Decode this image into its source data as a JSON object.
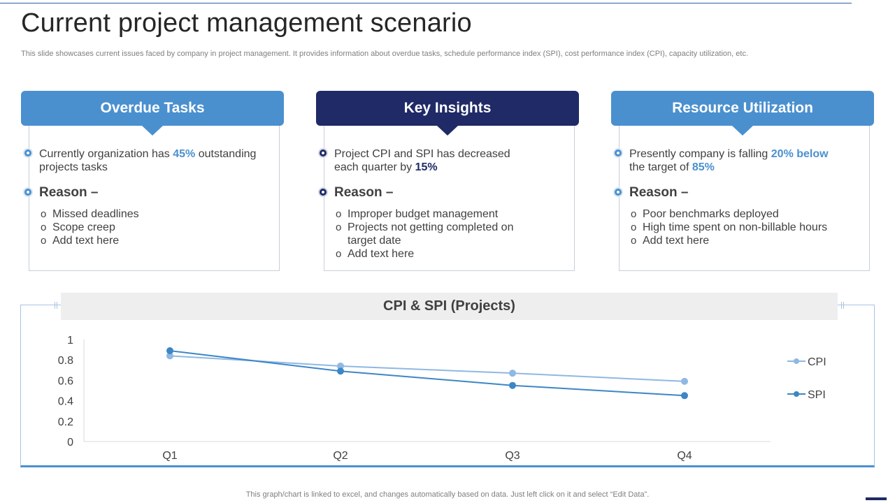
{
  "page": {
    "title": "Current project management scenario",
    "subtitle": "This slide showcases current issues faced by company in project management. It provides information about overdue tasks, schedule performance index (SPI), cost performance index (CPI), capacity utilization, etc."
  },
  "cards": [
    {
      "header": "Overdue Tasks",
      "statement_pre": "Currently  organization has ",
      "statement_hl1": "45%",
      "statement_mid": " outstanding projects tasks",
      "statement_hl2": "",
      "reason_label": "Reason –",
      "items": [
        "Missed deadlines",
        "Scope creep",
        "Add text here"
      ]
    },
    {
      "header": "Key Insights",
      "statement_pre": "Project CPI and SPI has decreased each quarter by ",
      "statement_hl1": "15%",
      "statement_mid": "",
      "statement_hl2": "",
      "reason_label": "Reason –",
      "items": [
        "Improper budget management",
        "Projects not getting completed on target date",
        "Add text here"
      ]
    },
    {
      "header": "Resource  Utilization",
      "statement_pre": "Presently company is falling ",
      "statement_hl1": "20% below",
      "statement_mid": " the target of ",
      "statement_hl2": "85%",
      "reason_label": "Reason –",
      "items": [
        "Poor benchmarks deployed",
        "High time spent on non-billable hours",
        "Add text here"
      ]
    }
  ],
  "chart_data": {
    "type": "line",
    "title": "CPI & SPI (Projects)",
    "categories": [
      "Q1",
      "Q2",
      "Q3",
      "Q4"
    ],
    "y_ticks": [
      "0",
      "0.2",
      "0.4",
      "0.6",
      "0.8",
      "1"
    ],
    "ylim": [
      0,
      1
    ],
    "xlabel": "",
    "ylabel": "",
    "legend_position": "right",
    "series": [
      {
        "name": "CPI",
        "values": [
          0.84,
          0.74,
          0.67,
          0.59
        ],
        "color": "#8fb8e2"
      },
      {
        "name": "SPI",
        "values": [
          0.89,
          0.69,
          0.55,
          0.45
        ],
        "color": "#3d86c6"
      }
    ]
  },
  "footer": {
    "note": "This graph/chart is linked to excel,  and changes automatically based on data. Just left click on it and select “Edit Data”."
  },
  "colors": {
    "accent_light": "#4a90cf",
    "accent_dark": "#1f2a66"
  }
}
